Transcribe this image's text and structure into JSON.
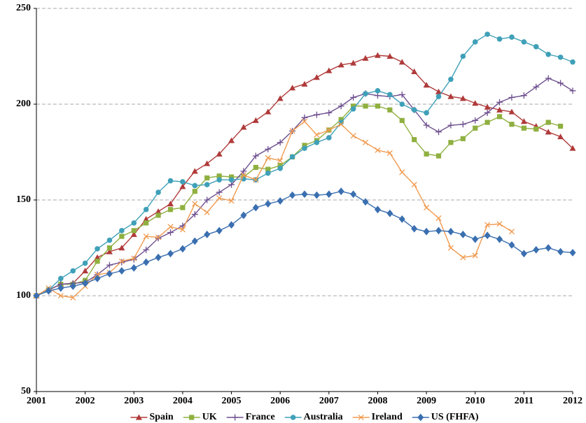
{
  "chart_data": {
    "type": "line",
    "x": [
      2001,
      2001.25,
      2001.5,
      2001.75,
      2002,
      2002.25,
      2002.5,
      2002.75,
      2003,
      2003.25,
      2003.5,
      2003.75,
      2004,
      2004.25,
      2004.5,
      2004.75,
      2005,
      2005.25,
      2005.5,
      2005.75,
      2006,
      2006.25,
      2006.5,
      2006.75,
      2007,
      2007.25,
      2007.5,
      2007.75,
      2008,
      2008.25,
      2008.5,
      2008.75,
      2009,
      2009.25,
      2009.5,
      2009.75,
      2010,
      2010.25,
      2010.5,
      2010.75,
      2011,
      2011.25,
      2011.5,
      2011.75,
      2012
    ],
    "xlim": [
      2001,
      2012
    ],
    "xticks": [
      2001,
      2002,
      2003,
      2004,
      2005,
      2006,
      2007,
      2008,
      2009,
      2010,
      2011,
      2012
    ],
    "ylim": [
      50,
      250
    ],
    "yticks": [
      50,
      100,
      150,
      200,
      250
    ],
    "grid": true,
    "legend": "bottom",
    "series": [
      {
        "name": "Spain",
        "color": "#b03a3a",
        "marker": "triangle",
        "values": [
          100,
          103,
          106,
          106.5,
          113,
          120,
          123,
          125,
          132,
          140,
          144,
          148,
          157,
          165,
          169,
          174,
          181,
          188,
          191.5,
          196,
          203,
          208.5,
          210.5,
          214,
          217.5,
          220.5,
          221.5,
          224,
          225.5,
          225,
          222,
          217,
          210,
          206.5,
          204,
          203,
          200.5,
          198.5,
          197,
          196,
          191,
          188.5,
          185.5,
          183,
          177
        ]
      },
      {
        "name": "UK",
        "color": "#8fb040",
        "marker": "square",
        "values": [
          100,
          103,
          106,
          106,
          108,
          118,
          125,
          131,
          134,
          138,
          142,
          145,
          146,
          154.5,
          161.5,
          162.5,
          162,
          162,
          167,
          166,
          168,
          172.5,
          178.5,
          181,
          186.5,
          192,
          199,
          199,
          199,
          197,
          191.5,
          181.5,
          174,
          173,
          180,
          182,
          187.5,
          190.5,
          193.5,
          189.5,
          187.5,
          187,
          190.5,
          188.5,
          null
        ]
      },
      {
        "name": "France",
        "color": "#6e4f8f",
        "marker": "plus",
        "values": [
          100,
          103,
          106,
          106.5,
          107,
          111,
          116,
          117.5,
          119,
          124,
          130,
          133,
          136.5,
          142.5,
          150,
          154,
          158,
          165,
          173,
          176.5,
          180,
          186,
          193,
          194.5,
          195.5,
          199,
          203.5,
          205.5,
          204.5,
          204,
          205,
          197,
          189,
          185.5,
          189,
          189.5,
          191.5,
          195.5,
          201,
          203.5,
          204.5,
          209,
          213.5,
          211,
          207
        ]
      },
      {
        "name": "Australia",
        "color": "#3fa0b8",
        "marker": "circle",
        "values": [
          100,
          103,
          109,
          113,
          117,
          124.5,
          129,
          134,
          138,
          145,
          154,
          160,
          159.5,
          157.5,
          158,
          160.5,
          160.5,
          161,
          160.5,
          164,
          166.5,
          172.5,
          177,
          180,
          182.5,
          190.5,
          197.5,
          205.5,
          207,
          205,
          200,
          197,
          195.5,
          204,
          213,
          225,
          232.5,
          236.5,
          234,
          235,
          232.5,
          230,
          226,
          224.5,
          222
        ]
      },
      {
        "name": "Ireland",
        "color": "#f09a4f",
        "marker": "cross",
        "values": [
          100,
          104,
          100,
          99,
          105,
          111,
          112,
          118,
          119.5,
          131,
          130.5,
          136,
          134.5,
          148,
          143.5,
          151,
          149.5,
          163,
          160.5,
          172,
          170.5,
          186,
          191,
          184,
          186.5,
          189.5,
          183.5,
          180,
          176,
          174.5,
          164.5,
          158,
          146,
          140.5,
          125,
          120,
          121,
          137,
          137.5,
          133.5,
          null,
          null,
          null,
          null,
          null
        ]
      },
      {
        "name": "US (FHFA)",
        "color": "#3a6fb0",
        "marker": "diamond",
        "values": [
          100,
          102.5,
          104,
          105,
          106.5,
          109,
          111.5,
          113,
          114.5,
          117.5,
          120,
          122,
          124.5,
          128.5,
          132,
          134,
          137,
          142,
          146,
          148,
          149.5,
          152.5,
          153,
          152.5,
          153,
          154.5,
          153,
          149,
          145,
          143,
          140,
          135,
          133.5,
          134,
          133.5,
          132,
          129.5,
          131.5,
          129.5,
          126.5,
          122,
          124,
          125,
          123,
          122.5
        ]
      }
    ]
  }
}
